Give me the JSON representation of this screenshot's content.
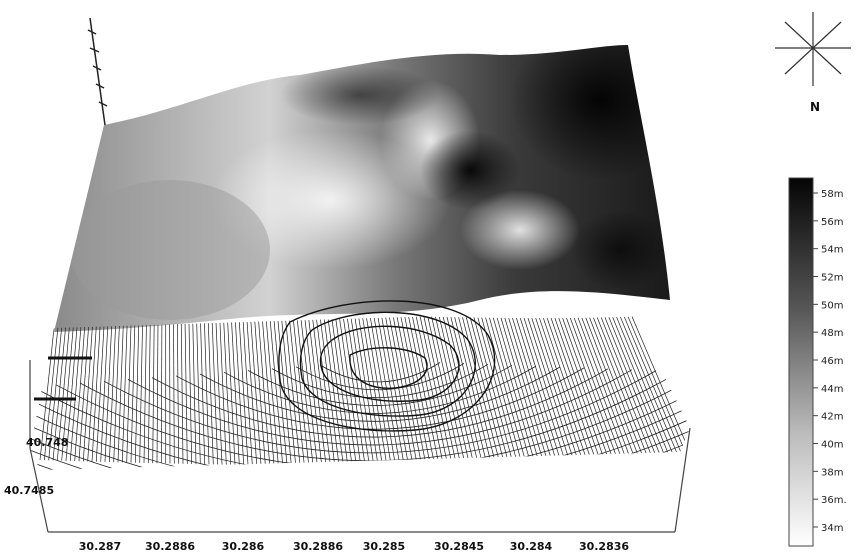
{
  "compass": {
    "north_label": "N"
  },
  "x_axis_ticks": [
    "30.287",
    "30.2886",
    "30.286",
    "30.2886",
    "30.285",
    "30.2845",
    "30.284",
    "30.2836"
  ],
  "y_axis_ticks": [
    "40.748",
    "40.7485"
  ],
  "colorbar": {
    "labels": [
      "58m",
      "56m",
      "54m",
      "52m",
      "50m",
      "48m",
      "46m",
      "44m",
      "42m",
      "40m",
      "38m",
      "36m.",
      "34m"
    ],
    "top_color": "#000000",
    "bottom_color": "#ffffff"
  }
}
